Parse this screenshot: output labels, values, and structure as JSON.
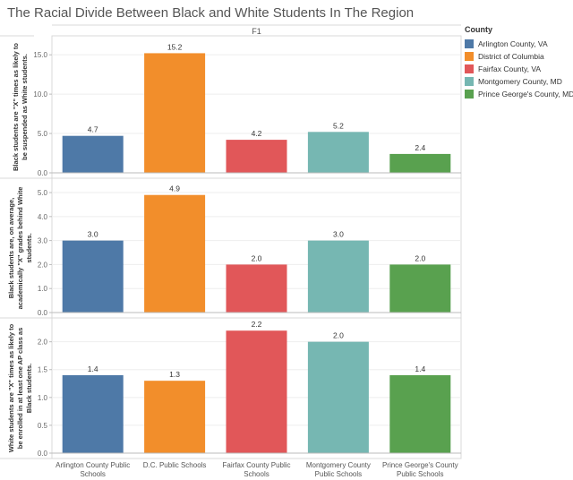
{
  "chart_data": {
    "type": "bar",
    "title": "The Racial Divide Between Black and White Students In The Region",
    "column_header": "F1",
    "categories": [
      "Arlington County Public Schools",
      "D.C. Public Schools",
      "Fairfax County Public Schools",
      "Montgomery County Public Schools",
      "Prince George's County Public Schools"
    ],
    "category_labels": [
      [
        "Arlington County Public",
        "Schools"
      ],
      [
        "D.C. Public Schools"
      ],
      [
        "Fairfax County Public",
        "Schools"
      ],
      [
        "Montgomery County",
        "Public Schools"
      ],
      [
        "Prince George's County",
        "Public Schools"
      ]
    ],
    "colors": [
      "#4e79a7",
      "#f28e2b",
      "#e15759",
      "#76b7b2",
      "#59a14f"
    ],
    "legend": {
      "title": "County",
      "placement": "right",
      "entries": [
        "Arlington County, VA",
        "District of Columbia",
        "Fairfax County, VA",
        "Montgomery County, MD",
        "Prince George's County, MD"
      ]
    },
    "panels": [
      {
        "ylabel_lines": [
          "Black students are \"X\" times as likely to",
          "be suspended as White students."
        ],
        "values": [
          4.7,
          15.2,
          4.2,
          5.2,
          2.4
        ],
        "value_labels": [
          "4.7",
          "15.2",
          "4.2",
          "5.2",
          "2.4"
        ],
        "ylim": [
          0,
          16.5
        ],
        "ticks": [
          0,
          5,
          10,
          15
        ],
        "tick_labels": [
          "0.0",
          "5.0",
          "10.0",
          "15.0"
        ]
      },
      {
        "ylabel_lines": [
          "Black students are, on average,",
          "academically \"X\" grades behind White",
          "students."
        ],
        "values": [
          3.0,
          4.9,
          2.0,
          3.0,
          2.0
        ],
        "value_labels": [
          "3.0",
          "4.9",
          "2.0",
          "3.0",
          "2.0"
        ],
        "ylim": [
          0,
          5.3
        ],
        "ticks": [
          0,
          1,
          2,
          3,
          4,
          5
        ],
        "tick_labels": [
          "0.0",
          "1.0",
          "2.0",
          "3.0",
          "4.0",
          "5.0"
        ]
      },
      {
        "ylabel_lines": [
          "White students are \"X\" times as likely to",
          "be enrolled in at least one AP class as",
          "Black students."
        ],
        "values": [
          1.4,
          1.3,
          2.2,
          2.0,
          1.4
        ],
        "value_labels": [
          "1.4",
          "1.3",
          "2.2",
          "2.0",
          "1.4"
        ],
        "ylim": [
          0,
          2.3
        ],
        "ticks": [
          0,
          0.5,
          1,
          1.5,
          2
        ],
        "tick_labels": [
          "0.0",
          "0.5",
          "1.0",
          "1.5",
          "2.0"
        ]
      }
    ]
  }
}
